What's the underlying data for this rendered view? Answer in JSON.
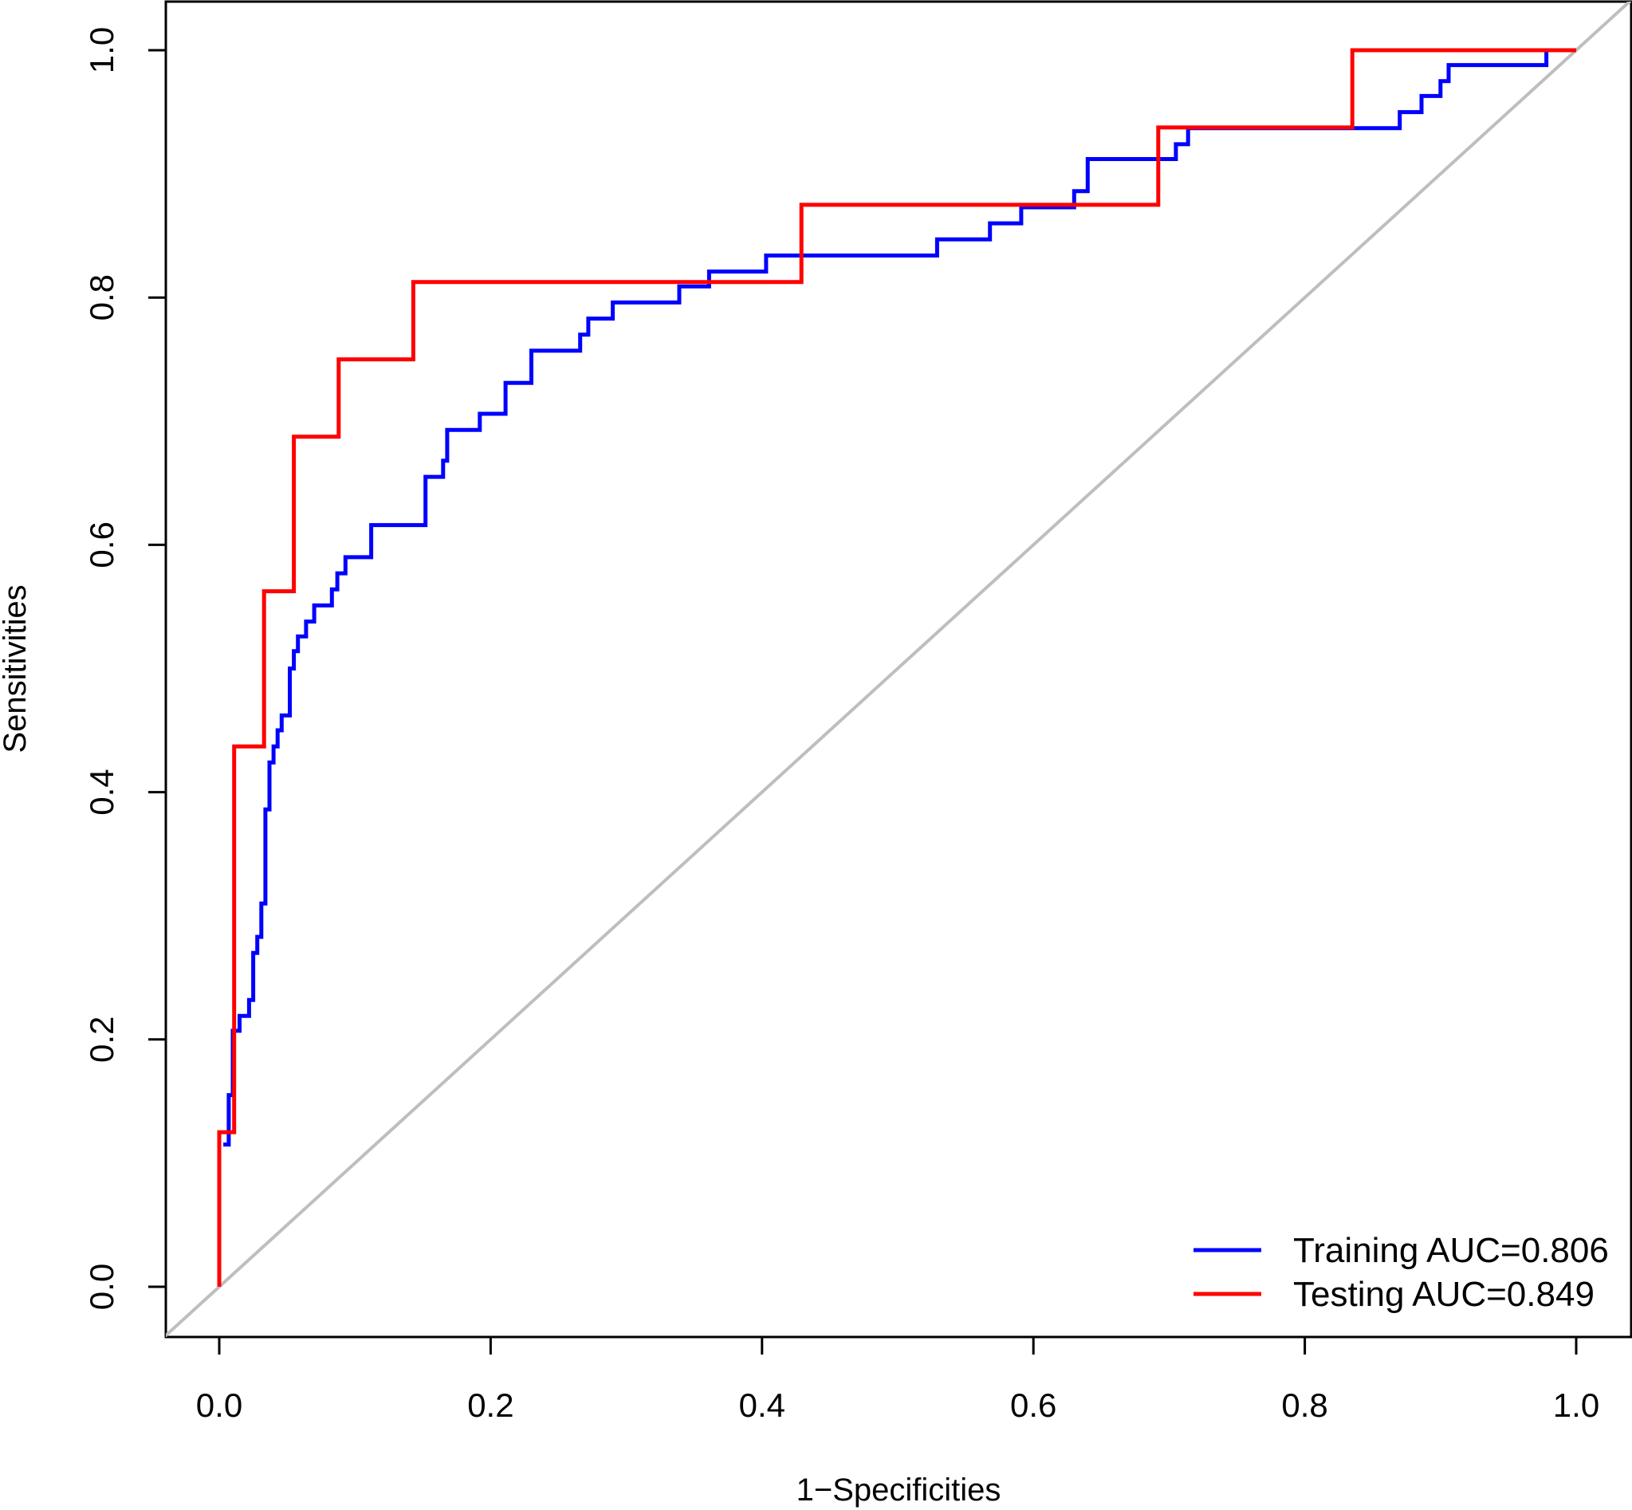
{
  "chart_data": {
    "type": "line",
    "title": "",
    "xlabel": "1−Specificities",
    "ylabel": "Sensitivities",
    "xlim": [
      -0.04,
      1.04
    ],
    "ylim": [
      -0.04,
      1.04
    ],
    "x_ticks": [
      0.0,
      0.2,
      0.4,
      0.6,
      0.8,
      1.0
    ],
    "x_tick_labels": [
      "0.0",
      "0.2",
      "0.4",
      "0.6",
      "0.8",
      "1.0"
    ],
    "y_ticks": [
      0.0,
      0.2,
      0.4,
      0.6,
      0.8,
      1.0
    ],
    "y_tick_labels": [
      "0.0",
      "0.2",
      "0.4",
      "0.6",
      "0.8",
      "1.0"
    ],
    "grid": false,
    "legend_position": "bottom-right",
    "reference_line": {
      "name": "chance",
      "color": "#bebebe",
      "from": [
        -0.04,
        -0.04
      ],
      "to": [
        1.04,
        1.04
      ]
    },
    "series": [
      {
        "name": "Training AUC=0.806",
        "color": "#0000ff",
        "points": [
          [
            0.003,
            0.115
          ],
          [
            0.007,
            0.115
          ],
          [
            0.007,
            0.155
          ],
          [
            0.01,
            0.155
          ],
          [
            0.01,
            0.207
          ],
          [
            0.015,
            0.207
          ],
          [
            0.015,
            0.219
          ],
          [
            0.022,
            0.219
          ],
          [
            0.022,
            0.232
          ],
          [
            0.025,
            0.232
          ],
          [
            0.025,
            0.27
          ],
          [
            0.028,
            0.27
          ],
          [
            0.028,
            0.283
          ],
          [
            0.031,
            0.283
          ],
          [
            0.031,
            0.31
          ],
          [
            0.034,
            0.31
          ],
          [
            0.034,
            0.386
          ],
          [
            0.037,
            0.386
          ],
          [
            0.037,
            0.424
          ],
          [
            0.04,
            0.424
          ],
          [
            0.04,
            0.437
          ],
          [
            0.043,
            0.437
          ],
          [
            0.043,
            0.45
          ],
          [
            0.046,
            0.45
          ],
          [
            0.046,
            0.462
          ],
          [
            0.052,
            0.462
          ],
          [
            0.052,
            0.5
          ],
          [
            0.055,
            0.5
          ],
          [
            0.055,
            0.514
          ],
          [
            0.058,
            0.514
          ],
          [
            0.058,
            0.526
          ],
          [
            0.064,
            0.526
          ],
          [
            0.064,
            0.538
          ],
          [
            0.07,
            0.538
          ],
          [
            0.07,
            0.551
          ],
          [
            0.083,
            0.551
          ],
          [
            0.083,
            0.564
          ],
          [
            0.087,
            0.564
          ],
          [
            0.087,
            0.577
          ],
          [
            0.093,
            0.577
          ],
          [
            0.093,
            0.59
          ],
          [
            0.112,
            0.59
          ],
          [
            0.112,
            0.616
          ],
          [
            0.152,
            0.616
          ],
          [
            0.152,
            0.655
          ],
          [
            0.165,
            0.655
          ],
          [
            0.165,
            0.668
          ],
          [
            0.168,
            0.668
          ],
          [
            0.168,
            0.693
          ],
          [
            0.192,
            0.693
          ],
          [
            0.192,
            0.706
          ],
          [
            0.211,
            0.706
          ],
          [
            0.211,
            0.731
          ],
          [
            0.23,
            0.731
          ],
          [
            0.23,
            0.757
          ],
          [
            0.266,
            0.757
          ],
          [
            0.266,
            0.77
          ],
          [
            0.272,
            0.77
          ],
          [
            0.272,
            0.783
          ],
          [
            0.29,
            0.783
          ],
          [
            0.29,
            0.796
          ],
          [
            0.339,
            0.796
          ],
          [
            0.339,
            0.809
          ],
          [
            0.361,
            0.809
          ],
          [
            0.361,
            0.821
          ],
          [
            0.403,
            0.821
          ],
          [
            0.403,
            0.834
          ],
          [
            0.529,
            0.834
          ],
          [
            0.529,
            0.847
          ],
          [
            0.568,
            0.847
          ],
          [
            0.568,
            0.86
          ],
          [
            0.591,
            0.86
          ],
          [
            0.591,
            0.873
          ],
          [
            0.63,
            0.873
          ],
          [
            0.63,
            0.886
          ],
          [
            0.64,
            0.886
          ],
          [
            0.64,
            0.912
          ],
          [
            0.705,
            0.912
          ],
          [
            0.705,
            0.924
          ],
          [
            0.714,
            0.924
          ],
          [
            0.714,
            0.937
          ],
          [
            0.87,
            0.937
          ],
          [
            0.87,
            0.95
          ],
          [
            0.886,
            0.95
          ],
          [
            0.886,
            0.963
          ],
          [
            0.9,
            0.963
          ],
          [
            0.9,
            0.975
          ],
          [
            0.906,
            0.975
          ],
          [
            0.906,
            0.988
          ],
          [
            0.978,
            0.988
          ],
          [
            0.978,
            1.0
          ],
          [
            1.0,
            1.0
          ]
        ]
      },
      {
        "name": "Testing AUC=0.849",
        "color": "#ff0000",
        "points": [
          [
            0.0,
            0.0
          ],
          [
            0.0,
            0.125
          ],
          [
            0.011,
            0.125
          ],
          [
            0.011,
            0.437
          ],
          [
            0.033,
            0.437
          ],
          [
            0.033,
            0.5625
          ],
          [
            0.055,
            0.5625
          ],
          [
            0.055,
            0.6875
          ],
          [
            0.088,
            0.6875
          ],
          [
            0.088,
            0.75
          ],
          [
            0.143,
            0.75
          ],
          [
            0.143,
            0.8125
          ],
          [
            0.429,
            0.8125
          ],
          [
            0.429,
            0.875
          ],
          [
            0.692,
            0.875
          ],
          [
            0.692,
            0.9375
          ],
          [
            0.835,
            0.9375
          ],
          [
            0.835,
            1.0
          ],
          [
            1.0,
            1.0
          ]
        ]
      }
    ]
  }
}
